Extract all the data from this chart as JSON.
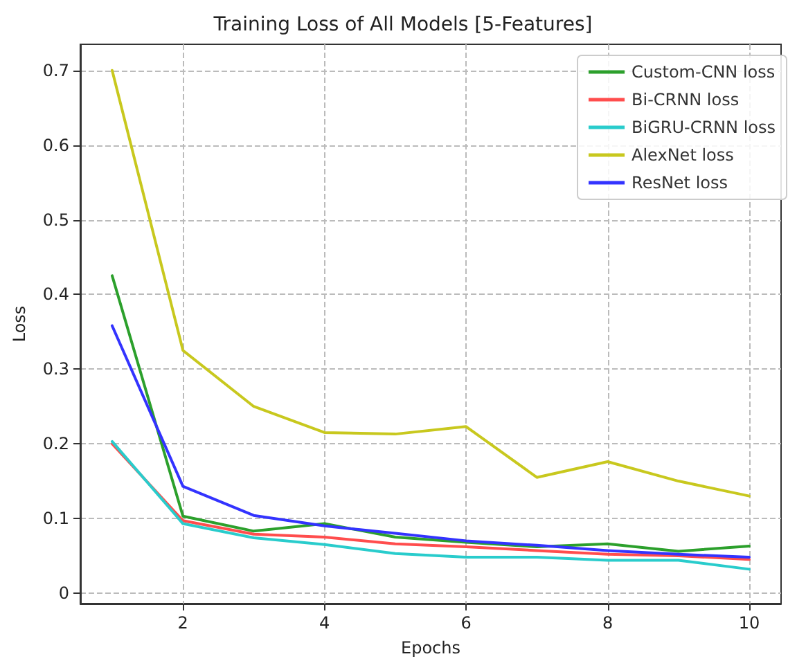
{
  "chart_data": {
    "type": "line",
    "title": "Training Loss of All Models [5-Features]",
    "xlabel": "Epochs",
    "ylabel": "Loss",
    "x": [
      1,
      2,
      3,
      4,
      5,
      6,
      7,
      8,
      9,
      10
    ],
    "series": [
      {
        "name": "Custom-CNN loss",
        "color": "#2ca02c",
        "values": [
          0.425,
          0.103,
          0.083,
          0.093,
          0.075,
          0.068,
          0.062,
          0.066,
          0.056,
          0.063
        ]
      },
      {
        "name": "Bi-CRNN loss",
        "color": "#ff4d4d",
        "values": [
          0.2,
          0.097,
          0.079,
          0.075,
          0.066,
          0.062,
          0.057,
          0.052,
          0.05,
          0.045
        ]
      },
      {
        "name": "BiGRU-CRNN loss",
        "color": "#29cccc",
        "values": [
          0.203,
          0.093,
          0.074,
          0.065,
          0.053,
          0.048,
          0.048,
          0.044,
          0.044,
          0.032
        ]
      },
      {
        "name": "AlexNet loss",
        "color": "#c8c81e",
        "values": [
          0.7,
          0.325,
          0.25,
          0.215,
          0.213,
          0.223,
          0.155,
          0.176,
          0.15,
          0.13
        ]
      },
      {
        "name": "ResNet loss",
        "color": "#3333ff",
        "values": [
          0.358,
          0.143,
          0.104,
          0.09,
          0.08,
          0.07,
          0.064,
          0.057,
          0.052,
          0.048
        ]
      }
    ],
    "xlim": [
      0.55,
      10.45
    ],
    "xticks": [
      2,
      4,
      6,
      8,
      10
    ],
    "ylim": [
      -0.014,
      0.735
    ],
    "yticks": [
      0,
      0.1,
      0.2,
      0.3,
      0.4,
      0.5,
      0.6,
      0.7
    ],
    "grid": true,
    "legend": "top right",
    "marker": "none",
    "line_style": "solid"
  }
}
